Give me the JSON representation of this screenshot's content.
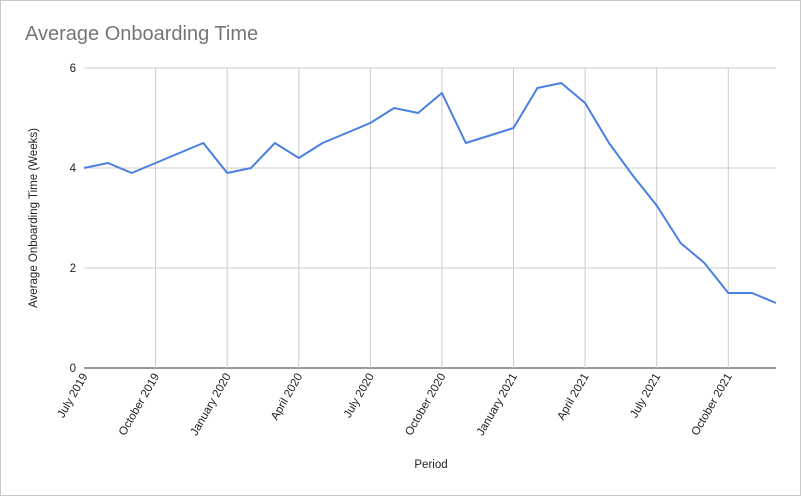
{
  "chart_data": {
    "type": "line",
    "title": "Average Onboarding Time",
    "xlabel": "Period",
    "ylabel": "Average Onboarding Time (Weeks)",
    "ylim": [
      0,
      6
    ],
    "yticks": [
      0,
      2,
      4,
      6
    ],
    "xticks": [
      "July 2019",
      "October 2019",
      "January 2020",
      "April 2020",
      "July 2020",
      "October 2020",
      "January 2021",
      "April 2021",
      "July 2021",
      "October 2021"
    ],
    "grid": true,
    "legend": "none",
    "color": "#4a7fe3",
    "series": [
      {
        "x": [
          "2019-07",
          "2019-08",
          "2019-09",
          "2019-10",
          "2019-11",
          "2019-12",
          "2020-01",
          "2020-02",
          "2020-03",
          "2020-04",
          "2020-05",
          "2020-06",
          "2020-07",
          "2020-08",
          "2020-09",
          "2020-10",
          "2020-11",
          "2020-12",
          "2021-01",
          "2021-02",
          "2021-03",
          "2021-04",
          "2021-05",
          "2021-06",
          "2021-07",
          "2021-08",
          "2021-09",
          "2021-10",
          "2021-11",
          "2021-12"
        ],
        "values": [
          4.0,
          4.1,
          3.9,
          4.1,
          4.3,
          4.5,
          3.9,
          4.0,
          4.5,
          4.2,
          4.5,
          4.7,
          4.9,
          5.2,
          5.1,
          5.5,
          4.5,
          4.65,
          4.8,
          5.6,
          5.7,
          5.3,
          4.5,
          3.85,
          3.25,
          2.5,
          2.1,
          1.5,
          1.5,
          1.3
        ]
      }
    ]
  }
}
